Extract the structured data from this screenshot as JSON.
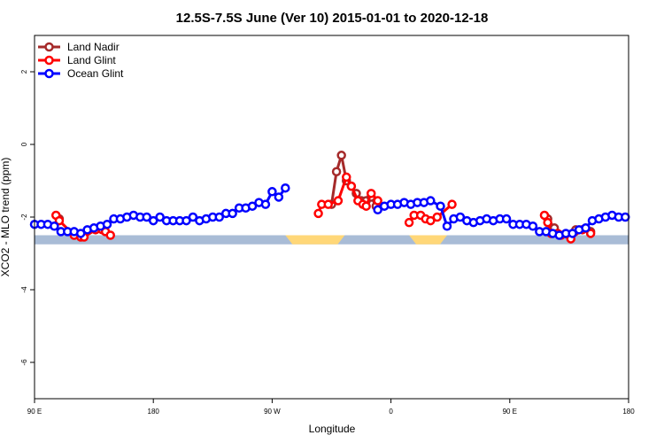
{
  "chart_data": {
    "type": "line",
    "title": "12.5S-7.5S June (Ver 10)   2015-01-01 to 2020-12-18",
    "xlabel": "Longitude",
    "ylabel": "XCO2 - MLO trend (ppm)",
    "xlim": [
      -90,
      270
    ],
    "ylim": [
      -7,
      3
    ],
    "x_ticks": [
      {
        "value": -90,
        "label": "90 E"
      },
      {
        "value": -18,
        "label": "180"
      },
      {
        "value": 54,
        "label": "90 W"
      },
      {
        "value": 126,
        "label": "0"
      },
      {
        "value": 198,
        "label": "90 E"
      },
      {
        "value": 270,
        "label": "180"
      }
    ],
    "y_ticks": [
      {
        "value": 2,
        "label": "2"
      },
      {
        "value": 0,
        "label": "0"
      },
      {
        "value": -2,
        "label": "-2"
      },
      {
        "value": -4,
        "label": "-4"
      },
      {
        "value": -6,
        "label": "-6"
      }
    ],
    "legend_position": "top-left",
    "series": [
      {
        "name": "Land Nadir",
        "color": "#a52a2a",
        "points": [
          [
            -75,
            -2.05
          ],
          [
            90,
            -1.65
          ],
          [
            93,
            -0.75
          ],
          [
            96,
            -0.3
          ],
          [
            99,
            -1.0
          ],
          [
            102,
            -1.15
          ],
          [
            105,
            -1.35
          ],
          [
            108,
            -1.55
          ],
          [
            111,
            -1.55
          ],
          [
            114,
            -1.45
          ],
          [
            117,
            -1.7
          ],
          [
            221,
            -2.05
          ],
          [
            225,
            -2.3
          ],
          [
            238,
            -2.35
          ],
          [
            247,
            -2.4
          ]
        ]
      },
      {
        "name": "Land Glint",
        "color": "#ff0000",
        "points": [
          [
            -77,
            -1.95
          ],
          [
            -75,
            -2.1
          ],
          [
            -66,
            -2.5
          ],
          [
            -62,
            -2.55
          ],
          [
            -60,
            -2.55
          ],
          [
            -53,
            -2.35
          ],
          [
            -49,
            -2.35
          ],
          [
            -47,
            -2.4
          ],
          [
            -44,
            -2.5
          ],
          [
            82,
            -1.9
          ],
          [
            84,
            -1.65
          ],
          [
            88,
            -1.65
          ],
          [
            94,
            -1.55
          ],
          [
            99,
            -0.9
          ],
          [
            102,
            -1.15
          ],
          [
            106,
            -1.55
          ],
          [
            109,
            -1.65
          ],
          [
            111,
            -1.7
          ],
          [
            114,
            -1.35
          ],
          [
            118,
            -1.55
          ],
          [
            137,
            -2.15
          ],
          [
            140,
            -1.95
          ],
          [
            144,
            -1.95
          ],
          [
            147,
            -2.05
          ],
          [
            150,
            -2.1
          ],
          [
            154,
            -2.0
          ],
          [
            163,
            -1.65
          ],
          [
            219,
            -1.95
          ],
          [
            221,
            -2.15
          ],
          [
            223,
            -2.45
          ],
          [
            227,
            -2.45
          ],
          [
            229,
            -2.5
          ],
          [
            235,
            -2.6
          ],
          [
            242,
            -2.35
          ],
          [
            247,
            -2.45
          ]
        ]
      },
      {
        "name": "Ocean Glint",
        "color": "#0000ff",
        "points": [
          [
            -90,
            -2.2
          ],
          [
            -86,
            -2.2
          ],
          [
            -82,
            -2.2
          ],
          [
            -78,
            -2.25
          ],
          [
            -74,
            -2.4
          ],
          [
            -70,
            -2.4
          ],
          [
            -66,
            -2.4
          ],
          [
            -62,
            -2.45
          ],
          [
            -58,
            -2.35
          ],
          [
            -54,
            -2.3
          ],
          [
            -50,
            -2.25
          ],
          [
            -46,
            -2.2
          ],
          [
            -42,
            -2.05
          ],
          [
            -38,
            -2.05
          ],
          [
            -34,
            -2.0
          ],
          [
            -30,
            -1.95
          ],
          [
            -26,
            -2.0
          ],
          [
            -22,
            -2.0
          ],
          [
            -18,
            -2.1
          ],
          [
            -14,
            -2.0
          ],
          [
            -10,
            -2.1
          ],
          [
            -6,
            -2.1
          ],
          [
            -2,
            -2.1
          ],
          [
            2,
            -2.1
          ],
          [
            6,
            -2.0
          ],
          [
            10,
            -2.1
          ],
          [
            14,
            -2.05
          ],
          [
            18,
            -2.0
          ],
          [
            22,
            -2.0
          ],
          [
            26,
            -1.9
          ],
          [
            30,
            -1.9
          ],
          [
            34,
            -1.75
          ],
          [
            38,
            -1.75
          ],
          [
            42,
            -1.7
          ],
          [
            46,
            -1.6
          ],
          [
            50,
            -1.65
          ],
          [
            54,
            -1.3
          ],
          [
            58,
            -1.45
          ],
          [
            62,
            -1.2
          ],
          [
            118,
            -1.8
          ],
          [
            122,
            -1.7
          ],
          [
            126,
            -1.65
          ],
          [
            130,
            -1.65
          ],
          [
            134,
            -1.6
          ],
          [
            138,
            -1.65
          ],
          [
            142,
            -1.6
          ],
          [
            146,
            -1.6
          ],
          [
            150,
            -1.55
          ],
          [
            156,
            -1.7
          ],
          [
            160,
            -2.25
          ],
          [
            164,
            -2.05
          ],
          [
            168,
            -2.0
          ],
          [
            172,
            -2.1
          ],
          [
            176,
            -2.15
          ],
          [
            180,
            -2.1
          ],
          [
            184,
            -2.05
          ],
          [
            188,
            -2.1
          ],
          [
            192,
            -2.05
          ],
          [
            196,
            -2.05
          ],
          [
            200,
            -2.2
          ],
          [
            204,
            -2.2
          ],
          [
            208,
            -2.2
          ],
          [
            212,
            -2.25
          ],
          [
            216,
            -2.4
          ],
          [
            220,
            -2.4
          ],
          [
            224,
            -2.45
          ],
          [
            228,
            -2.5
          ],
          [
            232,
            -2.45
          ],
          [
            236,
            -2.45
          ],
          [
            240,
            -2.35
          ],
          [
            244,
            -2.3
          ],
          [
            248,
            -2.1
          ],
          [
            252,
            -2.05
          ],
          [
            256,
            -2.0
          ],
          [
            260,
            -1.95
          ],
          [
            264,
            -2.0
          ],
          [
            268,
            -2.0
          ]
        ]
      }
    ],
    "surface_band": {
      "y_range": [
        -2.75,
        -2.5
      ],
      "ocean_color": "#a9bcd6",
      "land_color": "#ffd778",
      "land_spans": [
        [
          62,
          98
        ],
        [
          137,
          160
        ]
      ]
    }
  }
}
